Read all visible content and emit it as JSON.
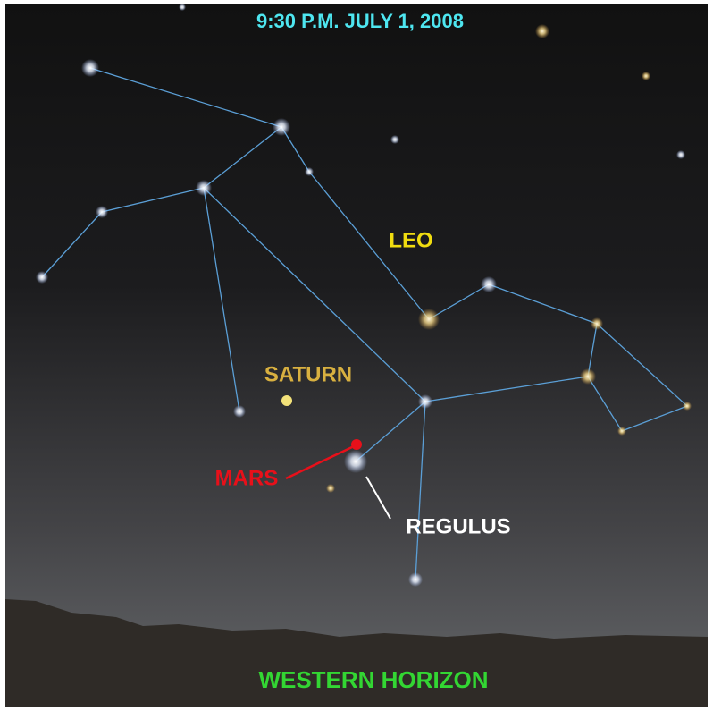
{
  "header": {
    "title": "9:30 P.M. JULY 1, 2008"
  },
  "labels": {
    "constellation": "LEO",
    "saturn": "SATURN",
    "mars": "MARS",
    "regulus": "REGULUS"
  },
  "footer": {
    "horizon": "WESTERN HORIZON"
  }
}
